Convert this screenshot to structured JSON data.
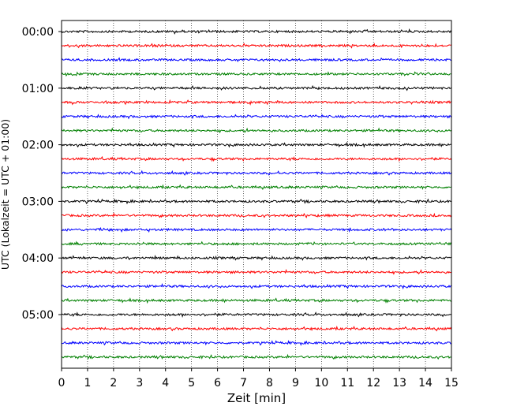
{
  "chart_data": {
    "type": "line",
    "title": "",
    "xlabel": "Zeit  [min]",
    "ylabel": "UTC (Lokalzeit = UTC + 01:00)",
    "xlim": [
      0,
      15
    ],
    "x_ticks": [
      "0",
      "1",
      "2",
      "3",
      "4",
      "5",
      "6",
      "7",
      "8",
      "9",
      "10",
      "11",
      "12",
      "13",
      "14",
      "15"
    ],
    "y_ticks": [
      "00:00",
      "01:00",
      "02:00",
      "03:00",
      "04:00",
      "05:00"
    ],
    "grid": "vertical dotted lines at each minute",
    "trace_colors": [
      "#000000",
      "#ff0000",
      "#0000ff",
      "#008000"
    ],
    "series": [
      {
        "start": "00:00",
        "color": "#000000"
      },
      {
        "start": "00:15",
        "color": "#ff0000"
      },
      {
        "start": "00:30",
        "color": "#0000ff"
      },
      {
        "start": "00:45",
        "color": "#008000"
      },
      {
        "start": "01:00",
        "color": "#000000"
      },
      {
        "start": "01:15",
        "color": "#ff0000"
      },
      {
        "start": "01:30",
        "color": "#0000ff"
      },
      {
        "start": "01:45",
        "color": "#008000"
      },
      {
        "start": "02:00",
        "color": "#000000"
      },
      {
        "start": "02:15",
        "color": "#ff0000"
      },
      {
        "start": "02:30",
        "color": "#0000ff"
      },
      {
        "start": "02:45",
        "color": "#008000"
      },
      {
        "start": "03:00",
        "color": "#000000"
      },
      {
        "start": "03:15",
        "color": "#ff0000"
      },
      {
        "start": "03:30",
        "color": "#0000ff"
      },
      {
        "start": "03:45",
        "color": "#008000"
      },
      {
        "start": "04:00",
        "color": "#000000"
      },
      {
        "start": "04:15",
        "color": "#ff0000"
      },
      {
        "start": "04:30",
        "color": "#0000ff"
      },
      {
        "start": "04:45",
        "color": "#008000"
      },
      {
        "start": "05:00",
        "color": "#000000"
      },
      {
        "start": "05:15",
        "color": "#ff0000"
      },
      {
        "start": "05:30",
        "color": "#0000ff"
      },
      {
        "start": "05:45",
        "color": "#008000"
      }
    ]
  }
}
